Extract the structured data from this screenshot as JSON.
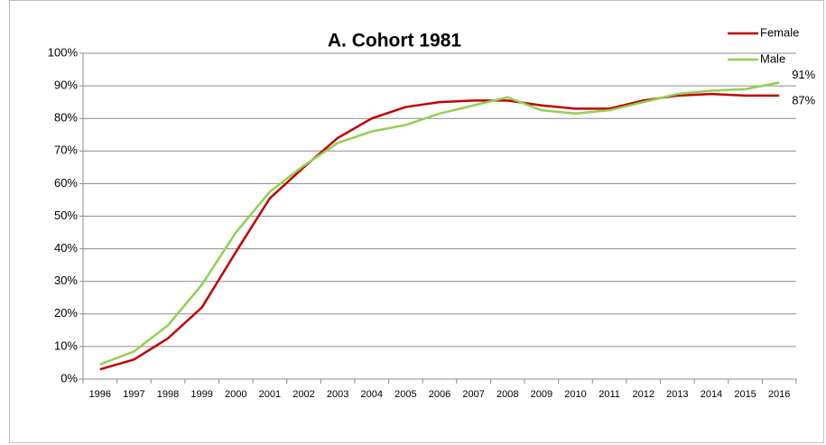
{
  "chart_data": {
    "type": "line",
    "title": "A. Cohort 1981",
    "categories": [
      "1996",
      "1997",
      "1998",
      "1999",
      "2000",
      "2001",
      "2002",
      "2003",
      "2004",
      "2005",
      "2006",
      "2007",
      "2008",
      "2009",
      "2010",
      "2011",
      "2012",
      "2013",
      "2014",
      "2015",
      "2016"
    ],
    "series": [
      {
        "name": "Female",
        "color": "#c00000",
        "values": [
          3,
          6,
          12.5,
          22,
          39,
          55.5,
          65,
          74,
          80,
          83.5,
          85,
          85.5,
          85.5,
          84,
          83,
          83,
          85.5,
          87,
          87.5,
          87,
          87
        ],
        "value_labels": [
          null,
          null,
          null,
          null,
          null,
          null,
          null,
          null,
          null,
          null,
          null,
          null,
          null,
          null,
          null,
          null,
          null,
          null,
          null,
          null,
          "87%"
        ]
      },
      {
        "name": "Male",
        "color": "#92d050",
        "values": [
          4.5,
          8.5,
          16.5,
          29,
          45,
          57.5,
          65.5,
          72.5,
          76,
          78,
          81.5,
          84,
          86.5,
          82.5,
          81.5,
          82.5,
          85,
          87.5,
          88.5,
          89,
          91
        ],
        "value_labels": [
          null,
          null,
          null,
          null,
          null,
          null,
          null,
          null,
          null,
          null,
          null,
          null,
          null,
          null,
          null,
          null,
          null,
          null,
          null,
          null,
          "91%"
        ]
      }
    ],
    "ylim": [
      0,
      100
    ],
    "yticks": [
      {
        "value": 0,
        "label": "0%"
      },
      {
        "value": 10,
        "label": "10%"
      },
      {
        "value": 20,
        "label": "20%"
      },
      {
        "value": 30,
        "label": "30%"
      },
      {
        "value": 40,
        "label": "40%"
      },
      {
        "value": 50,
        "label": "50%"
      },
      {
        "value": 60,
        "label": "60%"
      },
      {
        "value": 70,
        "label": "70%"
      },
      {
        "value": 80,
        "label": "80%"
      },
      {
        "value": 90,
        "label": "90%"
      },
      {
        "value": 100,
        "label": "100%"
      }
    ],
    "grid": true,
    "legend": "top-right"
  }
}
